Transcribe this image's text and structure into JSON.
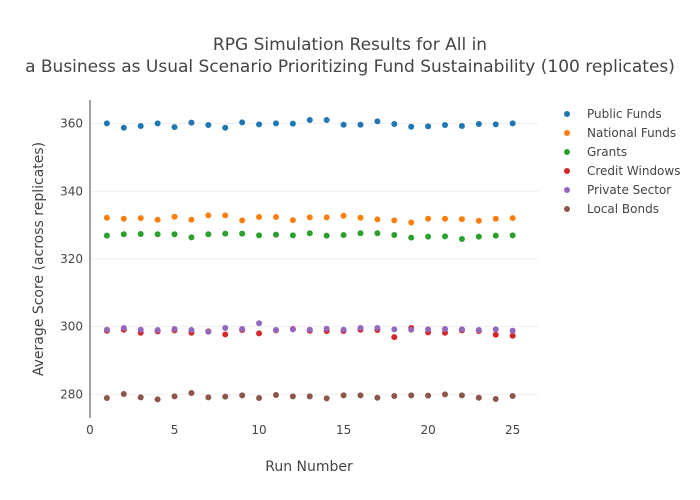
{
  "chart_data": {
    "type": "scatter",
    "title_lines": [
      "RPG Simulation Results for All in",
      "a Business as Usual Scenario Prioritizing Fund Sustainability (100 replicates)"
    ],
    "xlabel": "Run Number",
    "ylabel": "Average Score (across replicates)",
    "xlim": [
      0,
      26.5
    ],
    "ylim": [
      273,
      367
    ],
    "xticks": [
      0,
      5,
      10,
      15,
      20,
      25
    ],
    "yticks": [
      280,
      300,
      320,
      340,
      360
    ],
    "grid": true,
    "legend_position": "top-right",
    "x": [
      1,
      2,
      3,
      4,
      5,
      6,
      7,
      8,
      9,
      10,
      11,
      12,
      13,
      14,
      15,
      16,
      17,
      18,
      19,
      20,
      21,
      22,
      23,
      24,
      25
    ],
    "series": [
      {
        "name": "Public Funds",
        "color": "#1f77b4",
        "values": [
          360.1,
          358.8,
          359.3,
          360.1,
          359.0,
          360.3,
          359.6,
          358.8,
          360.4,
          359.8,
          360.1,
          360.0,
          361.1,
          361.1,
          359.7,
          359.7,
          360.7,
          359.9,
          359.1,
          359.2,
          359.6,
          359.3,
          359.9,
          359.8,
          360.1
        ]
      },
      {
        "name": "National Funds",
        "color": "#ff7f0e",
        "values": [
          332.2,
          331.9,
          332.1,
          331.6,
          332.5,
          331.6,
          332.9,
          332.9,
          331.4,
          332.4,
          332.4,
          331.5,
          332.3,
          332.3,
          332.8,
          332.2,
          331.7,
          331.4,
          330.8,
          331.9,
          331.9,
          331.8,
          331.3,
          331.9,
          332.1
        ]
      },
      {
        "name": "Grants",
        "color": "#2ca02c",
        "values": [
          326.9,
          327.3,
          327.4,
          327.3,
          327.3,
          326.4,
          327.3,
          327.5,
          327.5,
          327.0,
          327.2,
          327.0,
          327.6,
          326.9,
          327.1,
          327.6,
          327.6,
          327.1,
          326.3,
          326.6,
          326.7,
          325.9,
          326.6,
          326.9,
          327.0
        ]
      },
      {
        "name": "Credit Windows",
        "color": "#d62728",
        "values": [
          298.8,
          299.1,
          298.2,
          298.6,
          298.9,
          298.2,
          298.6,
          297.7,
          299.0,
          298.0,
          298.9,
          299.3,
          298.8,
          298.7,
          298.7,
          299.1,
          299.0,
          296.9,
          299.6,
          298.3,
          298.2,
          298.9,
          298.7,
          297.6,
          297.3
        ]
      },
      {
        "name": "Private Sector",
        "color": "#9467bd",
        "values": [
          299.1,
          299.6,
          299.1,
          299.0,
          299.3,
          299.0,
          298.5,
          299.6,
          299.3,
          301.0,
          299.0,
          299.2,
          299.1,
          299.4,
          299.1,
          299.6,
          299.6,
          299.2,
          299.1,
          299.2,
          299.3,
          299.2,
          299.0,
          299.2,
          298.8
        ]
      },
      {
        "name": "Local Bonds",
        "color": "#8c564b",
        "values": [
          278.9,
          280.1,
          279.1,
          278.5,
          279.4,
          280.4,
          279.1,
          279.3,
          279.7,
          278.9,
          279.8,
          279.4,
          279.4,
          278.8,
          279.7,
          279.7,
          279.0,
          279.5,
          279.7,
          279.6,
          280.0,
          279.7,
          279.0,
          278.6,
          279.5
        ]
      }
    ]
  }
}
